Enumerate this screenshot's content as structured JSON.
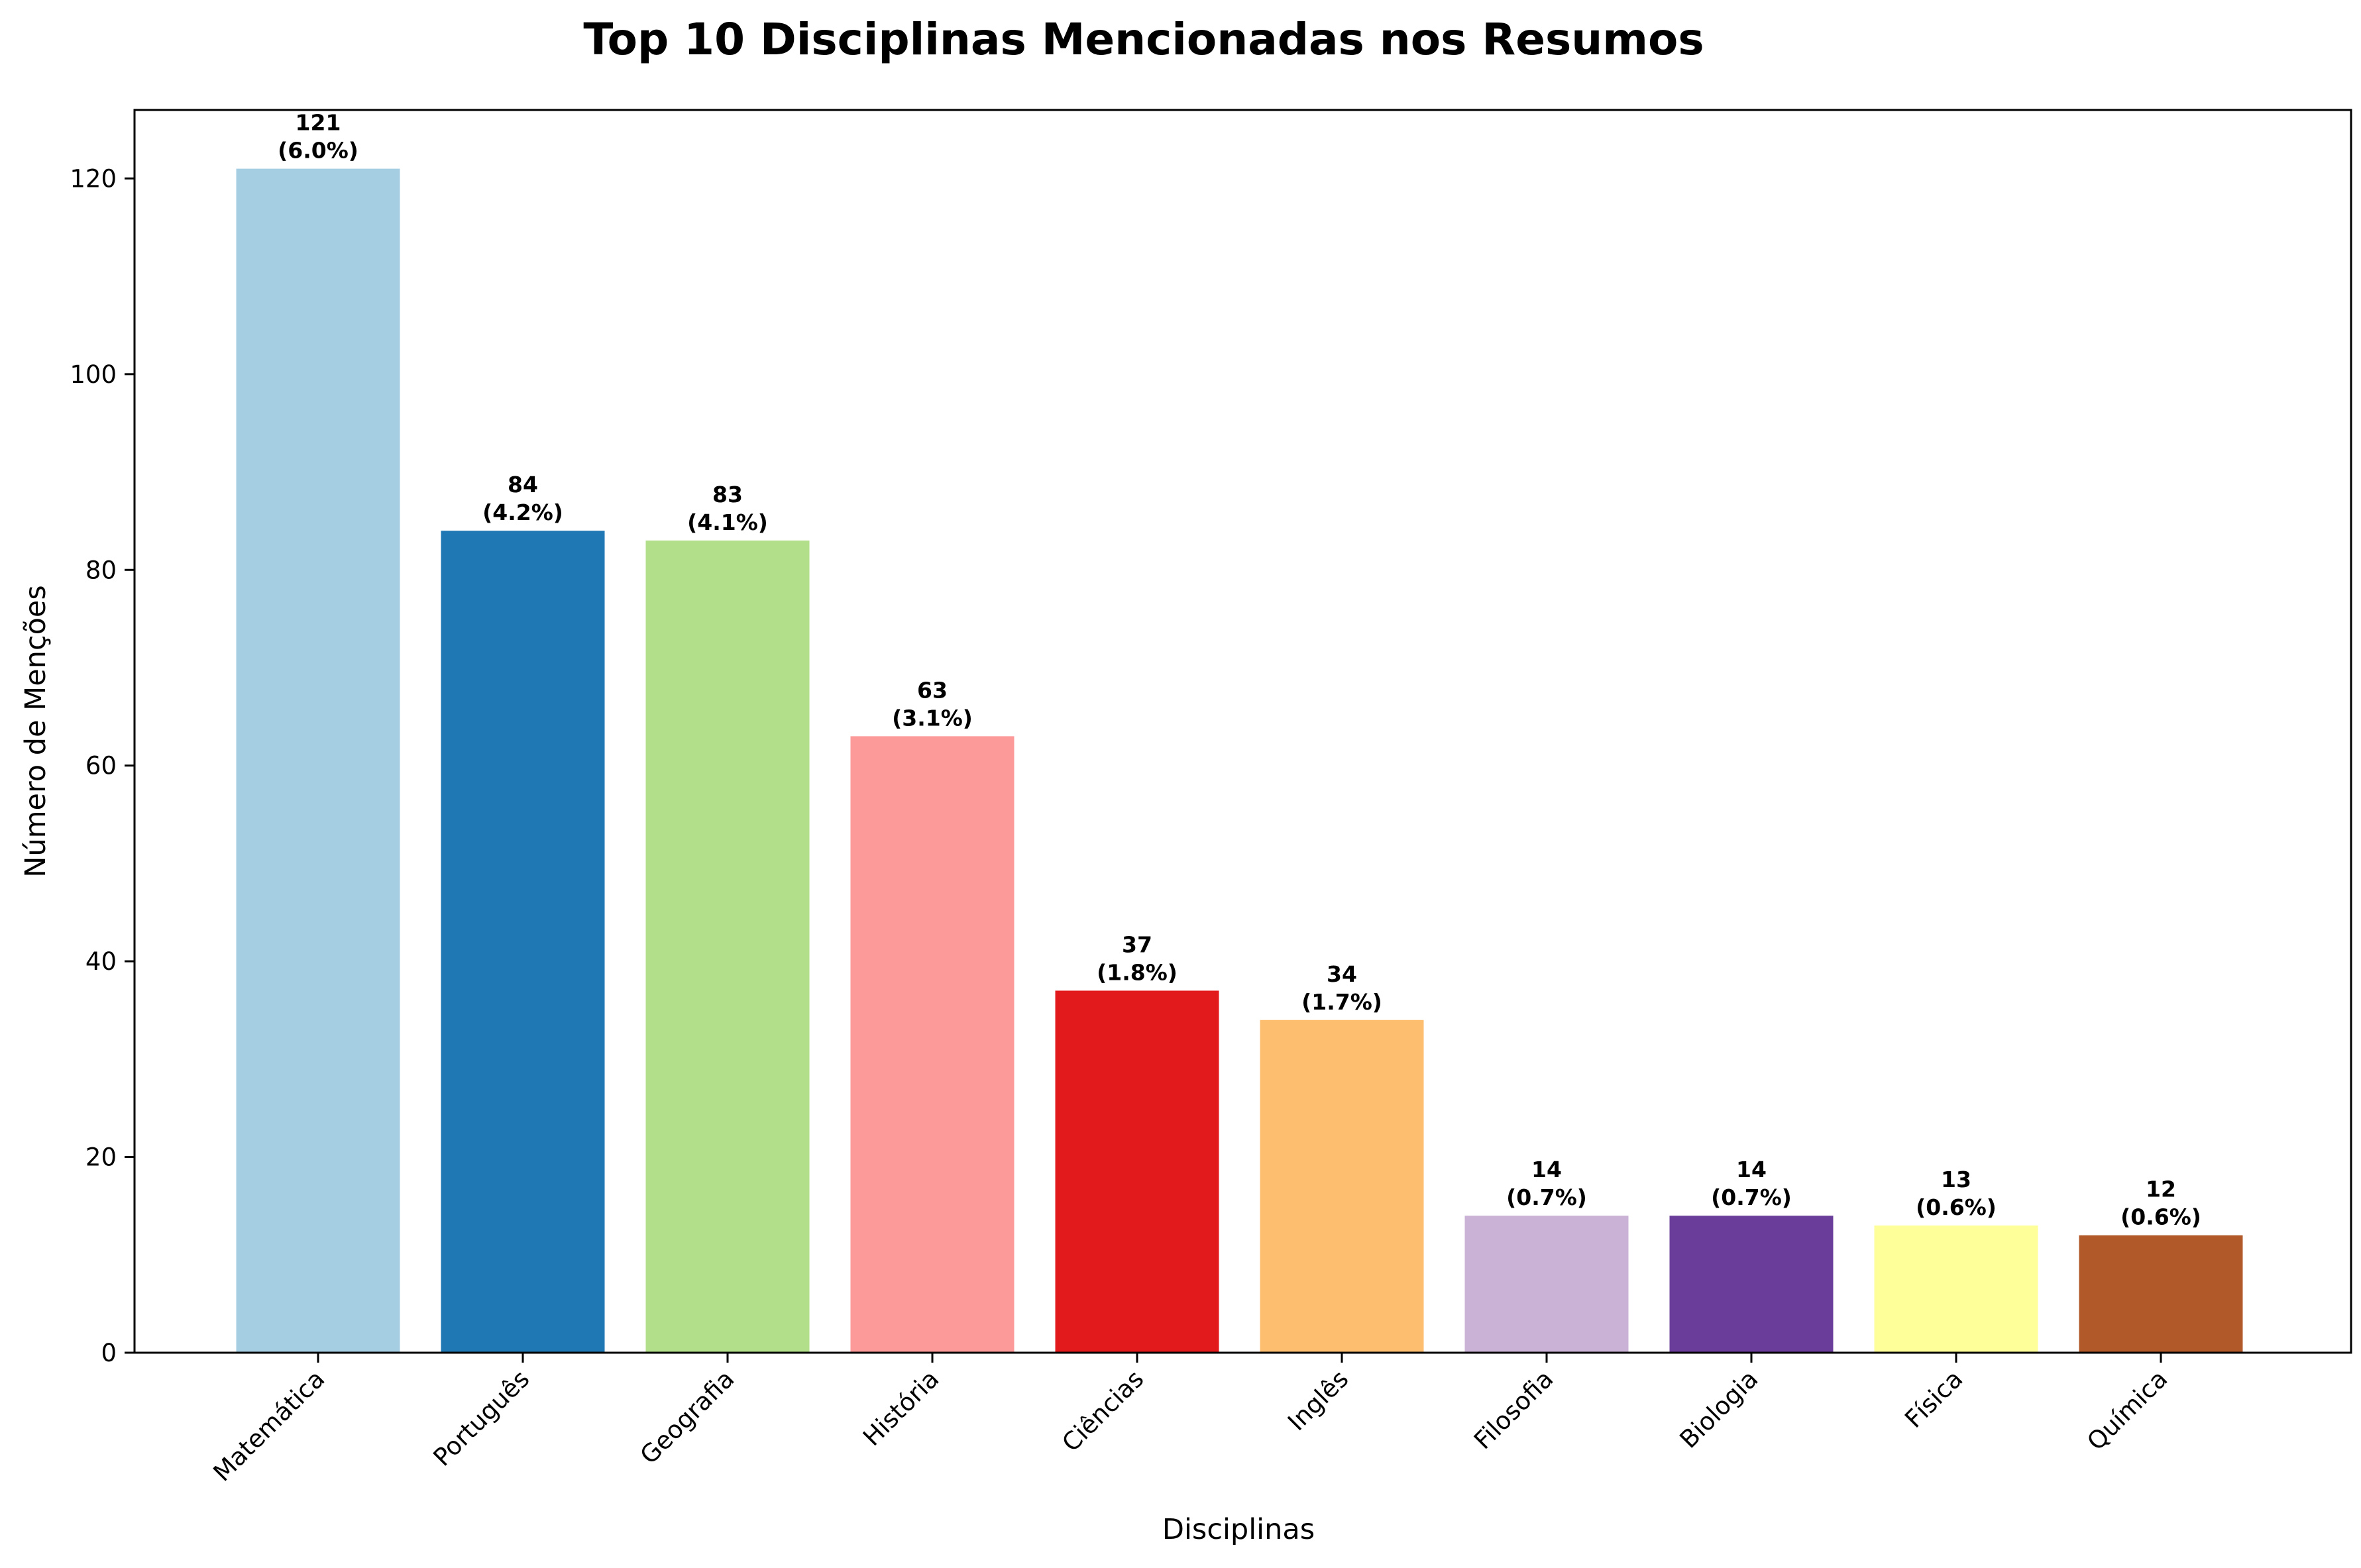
{
  "chart_data": {
    "type": "bar",
    "title": "Top 10 Disciplinas Mencionadas nos Resumos",
    "xlabel": "Disciplinas",
    "ylabel": "Número de Menções",
    "categories": [
      "Matemática",
      "Português",
      "Geografia",
      "História",
      "Ciências",
      "Inglês",
      "Filosofia",
      "Biologia",
      "Física",
      "Química"
    ],
    "values": [
      121,
      84,
      83,
      63,
      37,
      34,
      14,
      14,
      13,
      12
    ],
    "percent_labels": [
      "(6.0%)",
      "(4.2%)",
      "(4.1%)",
      "(3.1%)",
      "(1.8%)",
      "(1.7%)",
      "(0.7%)",
      "(0.7%)",
      "(0.6%)",
      "(0.6%)"
    ],
    "colors": [
      "#a6cee3",
      "#1f78b4",
      "#b2df8a",
      "#fb9a99",
      "#e31a1c",
      "#fdbf6f",
      "#cab2d6",
      "#6a3d9a",
      "#ffff99",
      "#b15928"
    ],
    "ylim": [
      0,
      127
    ],
    "yticks": [
      0,
      20,
      40,
      60,
      80,
      100,
      120
    ],
    "grid": false,
    "legend": "none"
  }
}
